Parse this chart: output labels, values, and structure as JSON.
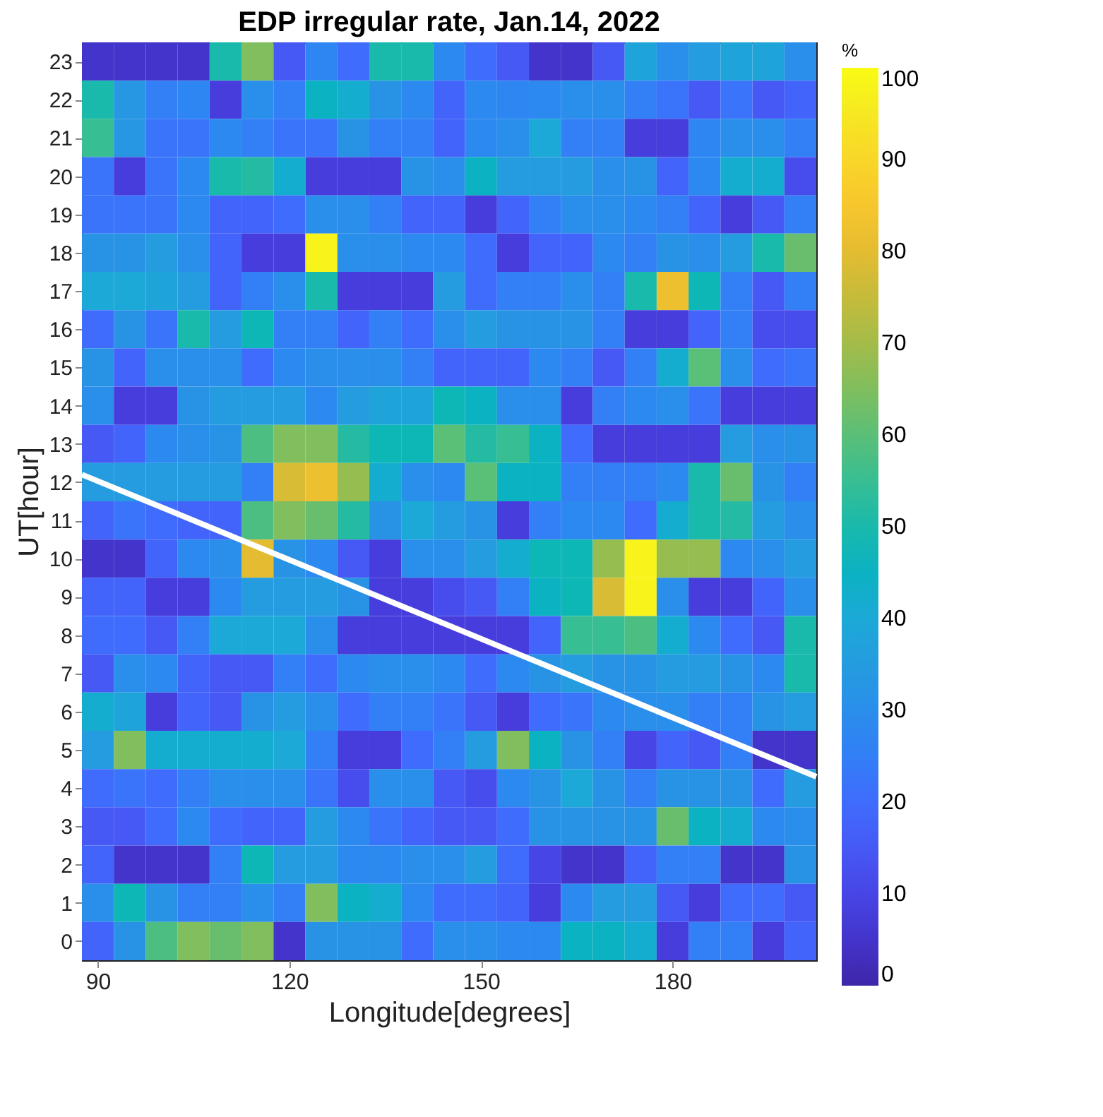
{
  "chart_data": {
    "type": "heatmap",
    "title": "EDP irregular rate, Jan.14, 2022",
    "xlabel": "Longitude[degrees]",
    "ylabel": "UT[hour]",
    "clabel": "%",
    "x": [
      90,
      95,
      100,
      105,
      110,
      115,
      120,
      125,
      130,
      135,
      140,
      145,
      150,
      155,
      160,
      165,
      170,
      175,
      180,
      185,
      190,
      195,
      200
    ],
    "xlim": [
      87.5,
      202.5
    ],
    "xticks": [
      90,
      120,
      150,
      180
    ],
    "ylim": [
      -0.5,
      23.5
    ],
    "yticks": [
      0,
      1,
      2,
      3,
      4,
      5,
      6,
      7,
      8,
      9,
      10,
      11,
      12,
      13,
      14,
      15,
      16,
      17,
      18,
      19,
      20,
      21,
      22,
      23
    ],
    "clim": [
      0,
      100
    ],
    "cticks": [
      0,
      10,
      20,
      30,
      40,
      50,
      60,
      70,
      80,
      90,
      100
    ],
    "cells": [
      [
        5,
        5,
        5,
        5,
        50,
        65,
        15,
        27,
        20,
        50,
        50,
        28,
        20,
        15,
        5,
        5,
        15,
        38,
        30,
        35,
        38,
        38,
        30
      ],
      [
        50,
        33,
        25,
        27,
        8,
        30,
        25,
        45,
        42,
        32,
        28,
        18,
        28,
        27,
        28,
        30,
        30,
        25,
        22,
        15,
        22,
        15,
        18
      ],
      [
        55,
        33,
        22,
        22,
        28,
        25,
        22,
        22,
        32,
        25,
        25,
        18,
        28,
        30,
        40,
        25,
        25,
        8,
        8,
        27,
        30,
        30,
        25
      ],
      [
        22,
        8,
        22,
        28,
        50,
        52,
        42,
        8,
        8,
        8,
        32,
        30,
        45,
        35,
        35,
        35,
        30,
        32,
        18,
        28,
        42,
        42,
        12
      ],
      [
        22,
        22,
        22,
        28,
        18,
        18,
        20,
        30,
        30,
        25,
        18,
        18,
        8,
        18,
        25,
        30,
        30,
        28,
        25,
        18,
        8,
        15,
        25
      ],
      [
        32,
        32,
        35,
        30,
        18,
        8,
        8,
        98,
        30,
        30,
        28,
        28,
        20,
        8,
        18,
        18,
        28,
        25,
        32,
        30,
        35,
        50,
        62
      ],
      [
        40,
        40,
        38,
        35,
        18,
        25,
        30,
        50,
        8,
        8,
        8,
        35,
        20,
        25,
        25,
        30,
        25,
        50,
        82,
        48,
        25,
        15,
        25
      ],
      [
        20,
        32,
        22,
        50,
        35,
        48,
        25,
        25,
        18,
        25,
        20,
        30,
        35,
        32,
        32,
        32,
        25,
        8,
        8,
        18,
        25,
        12,
        12
      ],
      [
        32,
        18,
        30,
        30,
        30,
        20,
        28,
        30,
        30,
        30,
        25,
        18,
        18,
        18,
        28,
        25,
        15,
        25,
        42,
        60,
        30,
        20,
        22
      ],
      [
        30,
        8,
        8,
        32,
        35,
        35,
        35,
        28,
        35,
        38,
        38,
        48,
        45,
        30,
        30,
        8,
        25,
        28,
        30,
        22,
        8,
        8,
        8
      ],
      [
        15,
        18,
        28,
        30,
        32,
        58,
        65,
        65,
        52,
        48,
        48,
        60,
        52,
        55,
        45,
        20,
        8,
        8,
        8,
        8,
        35,
        30,
        32
      ],
      [
        35,
        35,
        35,
        35,
        35,
        25,
        78,
        82,
        68,
        42,
        30,
        28,
        60,
        45,
        45,
        25,
        25,
        25,
        28,
        50,
        62,
        32,
        25
      ],
      [
        18,
        22,
        20,
        18,
        18,
        58,
        65,
        62,
        52,
        32,
        40,
        35,
        32,
        8,
        25,
        28,
        28,
        20,
        42,
        50,
        52,
        35,
        30
      ],
      [
        5,
        5,
        18,
        28,
        30,
        80,
        32,
        28,
        15,
        8,
        30,
        30,
        35,
        42,
        48,
        48,
        68,
        98,
        68,
        68,
        28,
        30,
        35
      ],
      [
        18,
        18,
        8,
        8,
        28,
        35,
        35,
        35,
        32,
        8,
        8,
        12,
        15,
        25,
        45,
        48,
        78,
        98,
        30,
        8,
        8,
        18,
        30
      ],
      [
        20,
        20,
        15,
        25,
        40,
        40,
        40,
        30,
        8,
        8,
        8,
        8,
        8,
        8,
        18,
        55,
        55,
        58,
        42,
        28,
        20,
        15,
        50
      ],
      [
        15,
        30,
        28,
        18,
        15,
        15,
        25,
        20,
        28,
        30,
        30,
        28,
        20,
        28,
        32,
        35,
        32,
        32,
        35,
        35,
        32,
        28,
        50
      ],
      [
        42,
        38,
        8,
        18,
        15,
        32,
        35,
        30,
        20,
        25,
        25,
        22,
        15,
        8,
        20,
        22,
        28,
        30,
        30,
        25,
        25,
        32,
        35
      ],
      [
        35,
        65,
        42,
        42,
        42,
        42,
        40,
        25,
        8,
        8,
        20,
        25,
        35,
        65,
        45,
        32,
        25,
        10,
        18,
        15,
        25,
        5,
        5
      ],
      [
        20,
        22,
        20,
        25,
        30,
        30,
        30,
        22,
        12,
        30,
        30,
        15,
        12,
        28,
        32,
        40,
        32,
        25,
        32,
        32,
        32,
        20,
        35
      ],
      [
        15,
        15,
        20,
        28,
        20,
        18,
        18,
        35,
        28,
        22,
        18,
        15,
        15,
        20,
        32,
        32,
        32,
        32,
        62,
        45,
        42,
        28,
        30
      ],
      [
        18,
        5,
        5,
        5,
        25,
        48,
        35,
        35,
        28,
        28,
        30,
        30,
        35,
        20,
        10,
        5,
        5,
        18,
        25,
        25,
        5,
        5,
        32
      ],
      [
        30,
        48,
        32,
        25,
        25,
        30,
        25,
        65,
        45,
        42,
        28,
        20,
        20,
        18,
        8,
        28,
        35,
        35,
        15,
        8,
        20,
        20,
        15
      ],
      [
        18,
        32,
        58,
        65,
        62,
        65,
        5,
        32,
        32,
        32,
        20,
        30,
        30,
        28,
        28,
        45,
        45,
        42,
        8,
        25,
        25,
        8,
        18
      ]
    ],
    "series": [
      {
        "type": "line",
        "color": "#ffffff",
        "x": [
          87.5,
          202.5
        ],
        "values": [
          12.2,
          4.3
        ]
      }
    ]
  }
}
